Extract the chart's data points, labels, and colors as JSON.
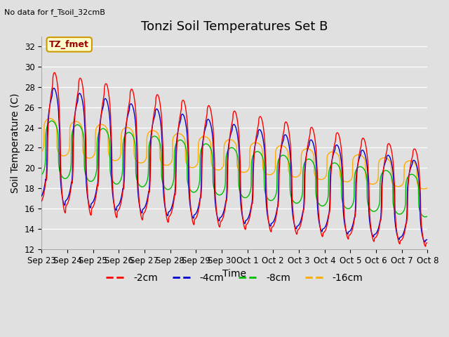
{
  "title": "Tonzi Soil Temperatures Set B",
  "xlabel": "Time",
  "ylabel": "Soil Temperature (C)",
  "no_data_text": "No data for f_Tsoil_32cmB",
  "tz_fmet_label": "TZ_fmet",
  "ylim": [
    12,
    33
  ],
  "yticks": [
    12,
    14,
    16,
    18,
    20,
    22,
    24,
    26,
    28,
    30,
    32
  ],
  "x_tick_labels": [
    "Sep 23",
    "Sep 24",
    "Sep 25",
    "Sep 26",
    "Sep 27",
    "Sep 28",
    "Sep 29",
    "Sep 30",
    "Oct 1",
    "Oct 2",
    "Oct 3",
    "Oct 4",
    "Oct 5",
    "Oct 6",
    "Oct 7",
    "Oct 8"
  ],
  "colors": {
    "2cm": "#ff0000",
    "4cm": "#0000cc",
    "8cm": "#00bb00",
    "16cm": "#ffaa00"
  },
  "legend_labels": [
    "-2cm",
    "-4cm",
    "-8cm",
    "-16cm"
  ],
  "fig_bg_color": "#e0e0e0",
  "plot_bg_color": "#e0e0e0",
  "title_fontsize": 13,
  "axis_fontsize": 10,
  "tick_fontsize": 8.5,
  "legend_fontsize": 10
}
